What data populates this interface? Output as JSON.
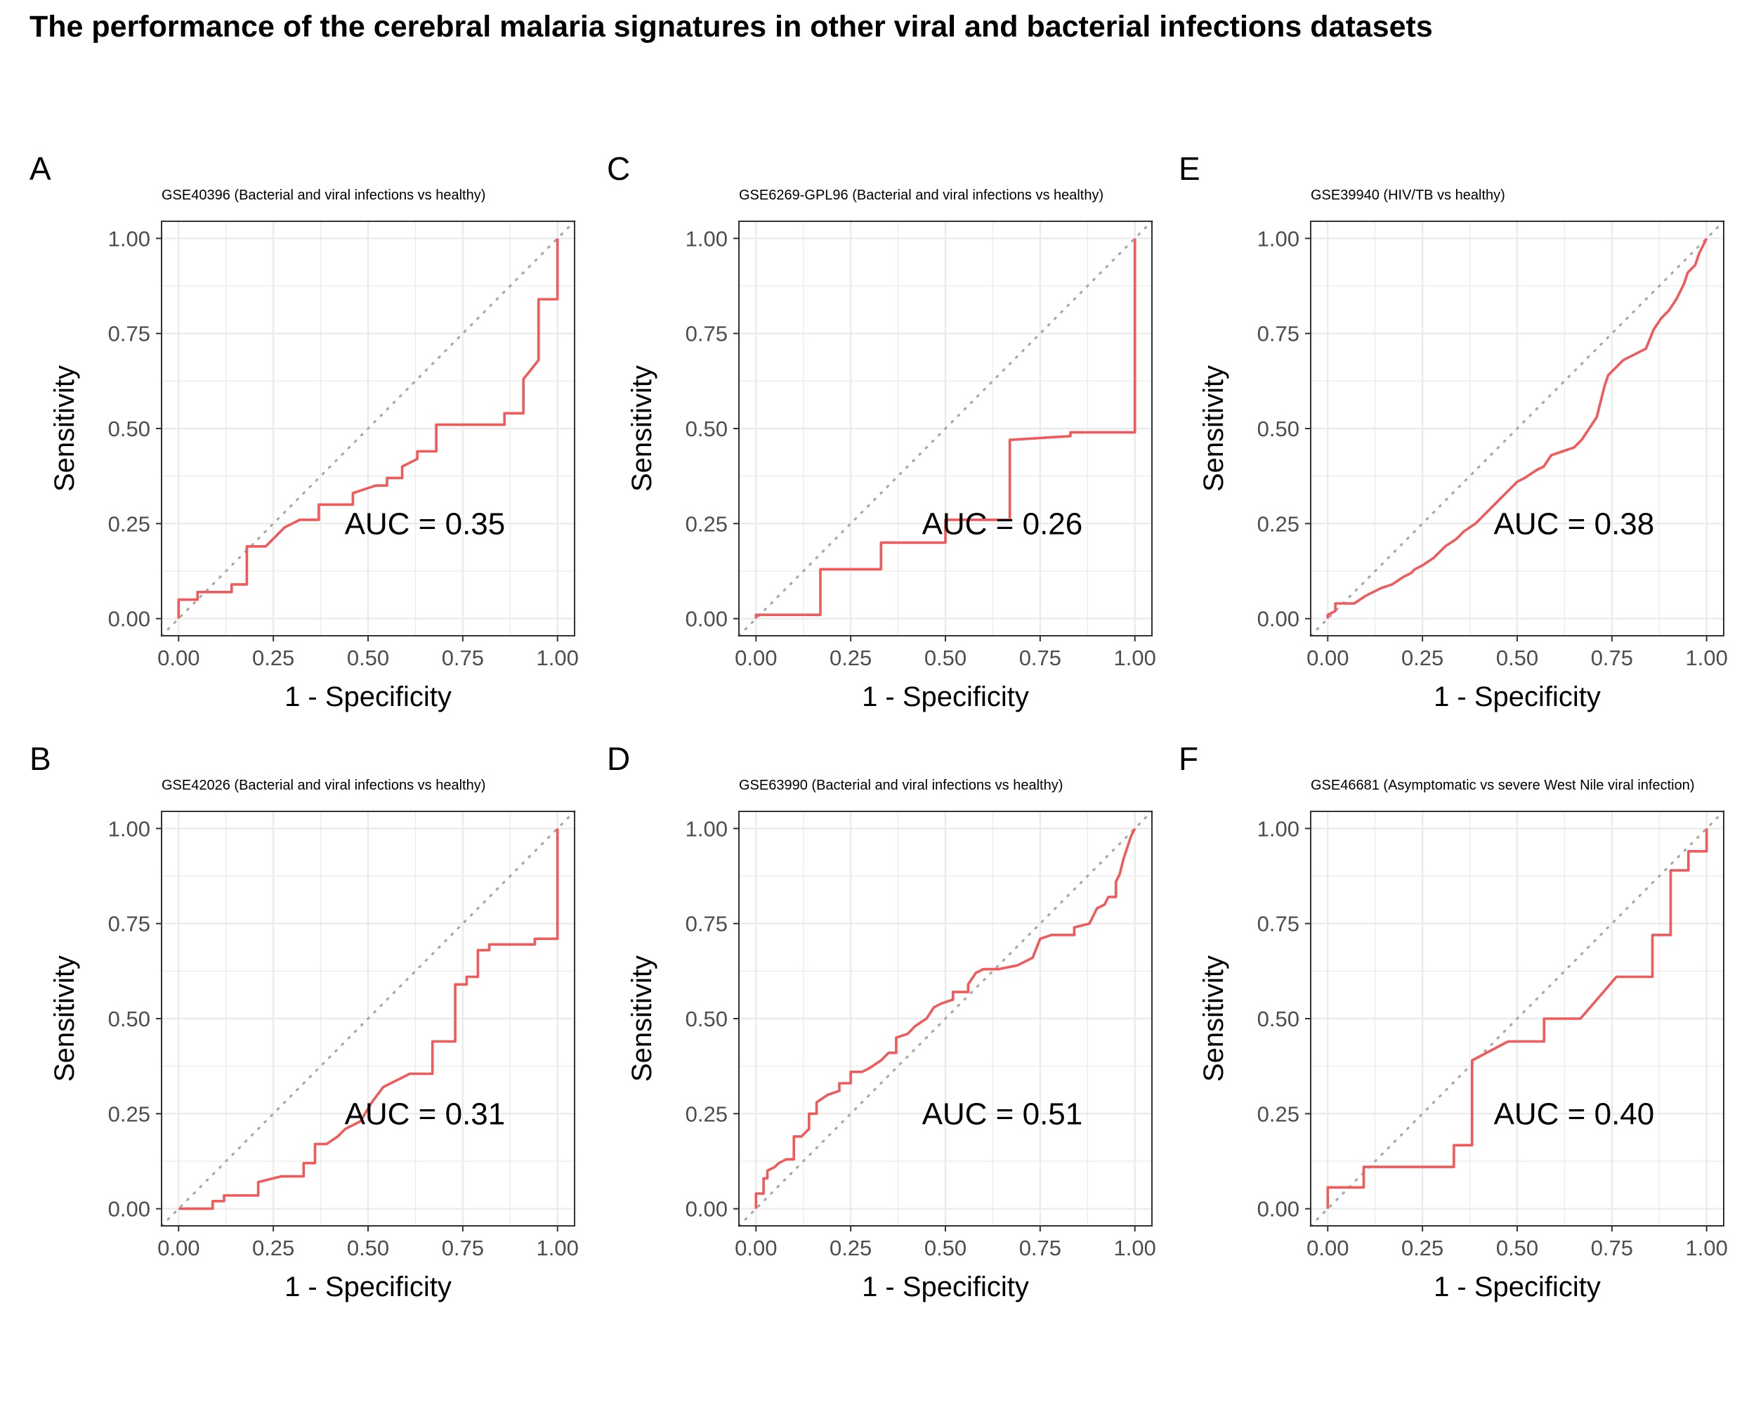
{
  "title": "The performance of the cerebral malaria signatures in other viral and bacterial infections datasets",
  "chart_data": [
    {
      "panel": "A",
      "type": "line",
      "title": "GSE40396 (Bacterial and viral infections vs healthy)",
      "xlabel": "1 - Specificity",
      "ylabel": "Sensitivity",
      "xlim": [
        0,
        1
      ],
      "ylim": [
        0,
        1
      ],
      "xticks": [
        "0.00",
        "0.25",
        "0.50",
        "0.75",
        "1.00"
      ],
      "yticks": [
        "0.00",
        "0.25",
        "0.50",
        "0.75",
        "1.00"
      ],
      "grid": true,
      "annotation": "AUC = 0.35",
      "auc": 0.35,
      "line_color": "#f05a5a",
      "reference_line_color": "#a8a8a8",
      "points": [
        [
          0,
          0
        ],
        [
          0,
          0.05
        ],
        [
          0.05,
          0.05
        ],
        [
          0.05,
          0.07
        ],
        [
          0.14,
          0.07
        ],
        [
          0.14,
          0.09
        ],
        [
          0.18,
          0.09
        ],
        [
          0.18,
          0.19
        ],
        [
          0.23,
          0.19
        ],
        [
          0.28,
          0.24
        ],
        [
          0.32,
          0.26
        ],
        [
          0.37,
          0.26
        ],
        [
          0.37,
          0.3
        ],
        [
          0.46,
          0.3
        ],
        [
          0.46,
          0.33
        ],
        [
          0.52,
          0.35
        ],
        [
          0.55,
          0.35
        ],
        [
          0.55,
          0.37
        ],
        [
          0.59,
          0.37
        ],
        [
          0.59,
          0.4
        ],
        [
          0.63,
          0.42
        ],
        [
          0.63,
          0.44
        ],
        [
          0.68,
          0.44
        ],
        [
          0.68,
          0.51
        ],
        [
          0.86,
          0.51
        ],
        [
          0.86,
          0.54
        ],
        [
          0.91,
          0.54
        ],
        [
          0.91,
          0.63
        ],
        [
          0.95,
          0.68
        ],
        [
          0.95,
          0.84
        ],
        [
          1,
          0.84
        ],
        [
          1,
          1
        ]
      ]
    },
    {
      "panel": "B",
      "type": "line",
      "title": "GSE42026 (Bacterial and viral infections vs healthy)",
      "xlabel": "1 - Specificity",
      "ylabel": "Sensitivity",
      "xlim": [
        0,
        1
      ],
      "ylim": [
        0,
        1
      ],
      "xticks": [
        "0.00",
        "0.25",
        "0.50",
        "0.75",
        "1.00"
      ],
      "yticks": [
        "0.00",
        "0.25",
        "0.50",
        "0.75",
        "1.00"
      ],
      "grid": true,
      "annotation": "AUC = 0.31",
      "auc": 0.31,
      "line_color": "#f05a5a",
      "reference_line_color": "#a8a8a8",
      "points": [
        [
          0,
          0
        ],
        [
          0.09,
          0
        ],
        [
          0.09,
          0.02
        ],
        [
          0.12,
          0.02
        ],
        [
          0.12,
          0.035
        ],
        [
          0.21,
          0.035
        ],
        [
          0.21,
          0.07
        ],
        [
          0.27,
          0.085
        ],
        [
          0.33,
          0.085
        ],
        [
          0.33,
          0.12
        ],
        [
          0.36,
          0.12
        ],
        [
          0.36,
          0.17
        ],
        [
          0.39,
          0.17
        ],
        [
          0.42,
          0.19
        ],
        [
          0.44,
          0.21
        ],
        [
          0.48,
          0.23
        ],
        [
          0.51,
          0.28
        ],
        [
          0.54,
          0.32
        ],
        [
          0.58,
          0.34
        ],
        [
          0.61,
          0.355
        ],
        [
          0.67,
          0.355
        ],
        [
          0.67,
          0.44
        ],
        [
          0.73,
          0.44
        ],
        [
          0.73,
          0.59
        ],
        [
          0.76,
          0.59
        ],
        [
          0.76,
          0.61
        ],
        [
          0.79,
          0.61
        ],
        [
          0.79,
          0.68
        ],
        [
          0.82,
          0.68
        ],
        [
          0.82,
          0.695
        ],
        [
          0.94,
          0.695
        ],
        [
          0.94,
          0.71
        ],
        [
          1,
          0.71
        ],
        [
          1,
          1
        ]
      ]
    },
    {
      "panel": "C",
      "type": "line",
      "title": "GSE6269-GPL96 (Bacterial and viral infections vs healthy)",
      "xlabel": "1 - Specificity",
      "ylabel": "Sensitivity",
      "xlim": [
        0,
        1
      ],
      "ylim": [
        0,
        1
      ],
      "xticks": [
        "0.00",
        "0.25",
        "0.50",
        "0.75",
        "1.00"
      ],
      "yticks": [
        "0.00",
        "0.25",
        "0.50",
        "0.75",
        "1.00"
      ],
      "grid": true,
      "annotation": "AUC = 0.26",
      "auc": 0.26,
      "line_color": "#f05a5a",
      "reference_line_color": "#a8a8a8",
      "points": [
        [
          0,
          0
        ],
        [
          0,
          0.01
        ],
        [
          0.17,
          0.01
        ],
        [
          0.17,
          0.13
        ],
        [
          0.33,
          0.13
        ],
        [
          0.33,
          0.2
        ],
        [
          0.5,
          0.2
        ],
        [
          0.5,
          0.26
        ],
        [
          0.67,
          0.26
        ],
        [
          0.67,
          0.47
        ],
        [
          0.83,
          0.48
        ],
        [
          0.83,
          0.49
        ],
        [
          1,
          0.49
        ],
        [
          1,
          1
        ]
      ]
    },
    {
      "panel": "D",
      "type": "line",
      "title": "GSE63990 (Bacterial and viral infections vs healthy)",
      "xlabel": "1 - Specificity",
      "ylabel": "Sensitivity",
      "xlim": [
        0,
        1
      ],
      "ylim": [
        0,
        1
      ],
      "xticks": [
        "0.00",
        "0.25",
        "0.50",
        "0.75",
        "1.00"
      ],
      "yticks": [
        "0.00",
        "0.25",
        "0.50",
        "0.75",
        "1.00"
      ],
      "grid": true,
      "annotation": "AUC = 0.51",
      "auc": 0.51,
      "line_color": "#f05a5a",
      "reference_line_color": "#a8a8a8",
      "points": [
        [
          0,
          0
        ],
        [
          0,
          0.04
        ],
        [
          0.02,
          0.04
        ],
        [
          0.02,
          0.08
        ],
        [
          0.03,
          0.08
        ],
        [
          0.03,
          0.1
        ],
        [
          0.05,
          0.11
        ],
        [
          0.06,
          0.12
        ],
        [
          0.08,
          0.13
        ],
        [
          0.1,
          0.13
        ],
        [
          0.1,
          0.19
        ],
        [
          0.12,
          0.19
        ],
        [
          0.14,
          0.21
        ],
        [
          0.14,
          0.25
        ],
        [
          0.16,
          0.25
        ],
        [
          0.16,
          0.28
        ],
        [
          0.19,
          0.3
        ],
        [
          0.22,
          0.31
        ],
        [
          0.22,
          0.33
        ],
        [
          0.25,
          0.33
        ],
        [
          0.25,
          0.36
        ],
        [
          0.28,
          0.36
        ],
        [
          0.3,
          0.37
        ],
        [
          0.33,
          0.39
        ],
        [
          0.35,
          0.41
        ],
        [
          0.37,
          0.41
        ],
        [
          0.37,
          0.45
        ],
        [
          0.4,
          0.46
        ],
        [
          0.42,
          0.48
        ],
        [
          0.45,
          0.5
        ],
        [
          0.47,
          0.53
        ],
        [
          0.49,
          0.54
        ],
        [
          0.52,
          0.55
        ],
        [
          0.52,
          0.57
        ],
        [
          0.56,
          0.57
        ],
        [
          0.56,
          0.59
        ],
        [
          0.58,
          0.62
        ],
        [
          0.6,
          0.63
        ],
        [
          0.64,
          0.63
        ],
        [
          0.69,
          0.64
        ],
        [
          0.73,
          0.66
        ],
        [
          0.75,
          0.71
        ],
        [
          0.78,
          0.72
        ],
        [
          0.84,
          0.72
        ],
        [
          0.84,
          0.74
        ],
        [
          0.88,
          0.75
        ],
        [
          0.9,
          0.79
        ],
        [
          0.92,
          0.8
        ],
        [
          0.93,
          0.82
        ],
        [
          0.95,
          0.82
        ],
        [
          0.95,
          0.86
        ],
        [
          0.96,
          0.88
        ],
        [
          0.97,
          0.92
        ],
        [
          0.98,
          0.95
        ],
        [
          0.99,
          0.98
        ],
        [
          1,
          1
        ]
      ]
    },
    {
      "panel": "E",
      "type": "line",
      "title": "GSE39940 (HIV/TB vs healthy)",
      "xlabel": "1 - Specificity",
      "ylabel": "Sensitivity",
      "xlim": [
        0,
        1
      ],
      "ylim": [
        0,
        1
      ],
      "xticks": [
        "0.00",
        "0.25",
        "0.50",
        "0.75",
        "1.00"
      ],
      "yticks": [
        "0.00",
        "0.25",
        "0.50",
        "0.75",
        "1.00"
      ],
      "grid": true,
      "annotation": "AUC = 0.38",
      "auc": 0.38,
      "line_color": "#f05a5a",
      "reference_line_color": "#a8a8a8",
      "points": [
        [
          0,
          0
        ],
        [
          0,
          0.01
        ],
        [
          0.02,
          0.02
        ],
        [
          0.02,
          0.04
        ],
        [
          0.07,
          0.04
        ],
        [
          0.1,
          0.06
        ],
        [
          0.12,
          0.07
        ],
        [
          0.14,
          0.08
        ],
        [
          0.17,
          0.09
        ],
        [
          0.2,
          0.11
        ],
        [
          0.22,
          0.12
        ],
        [
          0.23,
          0.13
        ],
        [
          0.25,
          0.14
        ],
        [
          0.28,
          0.16
        ],
        [
          0.31,
          0.19
        ],
        [
          0.34,
          0.21
        ],
        [
          0.36,
          0.23
        ],
        [
          0.39,
          0.25
        ],
        [
          0.41,
          0.27
        ],
        [
          0.43,
          0.29
        ],
        [
          0.45,
          0.31
        ],
        [
          0.48,
          0.34
        ],
        [
          0.5,
          0.36
        ],
        [
          0.52,
          0.37
        ],
        [
          0.55,
          0.39
        ],
        [
          0.57,
          0.4
        ],
        [
          0.59,
          0.43
        ],
        [
          0.62,
          0.44
        ],
        [
          0.65,
          0.45
        ],
        [
          0.67,
          0.47
        ],
        [
          0.69,
          0.5
        ],
        [
          0.71,
          0.53
        ],
        [
          0.72,
          0.57
        ],
        [
          0.73,
          0.61
        ],
        [
          0.74,
          0.64
        ],
        [
          0.76,
          0.66
        ],
        [
          0.78,
          0.68
        ],
        [
          0.8,
          0.69
        ],
        [
          0.82,
          0.7
        ],
        [
          0.84,
          0.71
        ],
        [
          0.86,
          0.76
        ],
        [
          0.88,
          0.79
        ],
        [
          0.9,
          0.81
        ],
        [
          0.92,
          0.84
        ],
        [
          0.94,
          0.88
        ],
        [
          0.95,
          0.91
        ],
        [
          0.97,
          0.93
        ],
        [
          0.98,
          0.96
        ],
        [
          1,
          1
        ]
      ]
    },
    {
      "panel": "F",
      "type": "line",
      "title": "GSE46681 (Asymptomatic vs severe West Nile viral infection)",
      "xlabel": "1 - Specificity",
      "ylabel": "Sensitivity",
      "xlim": [
        0,
        1
      ],
      "ylim": [
        0,
        1
      ],
      "xticks": [
        "0.00",
        "0.25",
        "0.50",
        "0.75",
        "1.00"
      ],
      "yticks": [
        "0.00",
        "0.25",
        "0.50",
        "0.75",
        "1.00"
      ],
      "grid": true,
      "annotation": "AUC = 0.40",
      "auc": 0.4,
      "line_color": "#f05a5a",
      "reference_line_color": "#a8a8a8",
      "points": [
        [
          0,
          0
        ],
        [
          0,
          0.056
        ],
        [
          0.095,
          0.056
        ],
        [
          0.095,
          0.11
        ],
        [
          0.333,
          0.11
        ],
        [
          0.333,
          0.167
        ],
        [
          0.381,
          0.167
        ],
        [
          0.381,
          0.39
        ],
        [
          0.476,
          0.44
        ],
        [
          0.571,
          0.44
        ],
        [
          0.571,
          0.5
        ],
        [
          0.667,
          0.5
        ],
        [
          0.762,
          0.61
        ],
        [
          0.857,
          0.61
        ],
        [
          0.857,
          0.72
        ],
        [
          0.905,
          0.72
        ],
        [
          0.905,
          0.89
        ],
        [
          0.952,
          0.89
        ],
        [
          0.952,
          0.94
        ],
        [
          1,
          0.94
        ],
        [
          1,
          1
        ]
      ]
    }
  ]
}
